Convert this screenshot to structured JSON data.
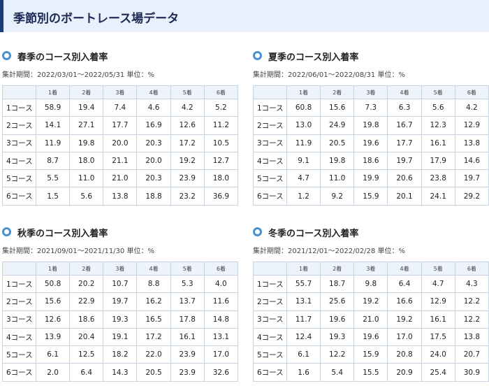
{
  "page": {
    "title": "季節別のボートレース場データ"
  },
  "columns": [
    "1着",
    "2着",
    "3着",
    "4着",
    "5着",
    "6着"
  ],
  "sections": [
    {
      "title": "春季のコース別入着率",
      "period": "集計期間：2022/03/01～2022/05/31",
      "unit": "単位：%",
      "rows": [
        {
          "label": "1コース",
          "values": [
            "58.9",
            "19.4",
            "7.4",
            "4.6",
            "4.2",
            "5.2"
          ]
        },
        {
          "label": "2コース",
          "values": [
            "14.1",
            "27.1",
            "17.7",
            "16.9",
            "12.6",
            "11.2"
          ]
        },
        {
          "label": "3コース",
          "values": [
            "11.9",
            "19.8",
            "20.0",
            "20.3",
            "17.2",
            "10.5"
          ]
        },
        {
          "label": "4コース",
          "values": [
            "8.7",
            "18.0",
            "21.1",
            "20.0",
            "19.2",
            "12.7"
          ]
        },
        {
          "label": "5コース",
          "values": [
            "5.5",
            "11.0",
            "21.0",
            "20.3",
            "23.9",
            "18.0"
          ]
        },
        {
          "label": "6コース",
          "values": [
            "1.5",
            "5.6",
            "13.8",
            "18.8",
            "23.2",
            "36.9"
          ]
        }
      ]
    },
    {
      "title": "夏季のコース別入着率",
      "period": "集計期間：2022/06/01～2022/08/31",
      "unit": "単位：%",
      "rows": [
        {
          "label": "1コース",
          "values": [
            "60.8",
            "15.6",
            "7.3",
            "6.3",
            "5.6",
            "4.2"
          ]
        },
        {
          "label": "2コース",
          "values": [
            "13.0",
            "24.9",
            "19.8",
            "16.7",
            "12.3",
            "12.9"
          ]
        },
        {
          "label": "3コース",
          "values": [
            "11.9",
            "20.5",
            "19.6",
            "17.7",
            "16.1",
            "13.8"
          ]
        },
        {
          "label": "4コース",
          "values": [
            "9.1",
            "19.8",
            "18.6",
            "19.7",
            "17.9",
            "14.6"
          ]
        },
        {
          "label": "5コース",
          "values": [
            "4.7",
            "11.0",
            "19.9",
            "20.6",
            "23.8",
            "19.7"
          ]
        },
        {
          "label": "6コース",
          "values": [
            "1.2",
            "9.2",
            "15.9",
            "20.1",
            "24.1",
            "29.2"
          ]
        }
      ]
    },
    {
      "title": "秋季のコース別入着率",
      "period": "集計期間：2021/09/01～2021/11/30",
      "unit": "単位：%",
      "rows": [
        {
          "label": "1コース",
          "values": [
            "50.8",
            "20.2",
            "10.7",
            "8.8",
            "5.3",
            "4.0"
          ]
        },
        {
          "label": "2コース",
          "values": [
            "15.6",
            "22.9",
            "19.7",
            "16.2",
            "13.7",
            "11.6"
          ]
        },
        {
          "label": "3コース",
          "values": [
            "12.6",
            "18.6",
            "19.3",
            "16.5",
            "17.8",
            "14.8"
          ]
        },
        {
          "label": "4コース",
          "values": [
            "13.9",
            "20.4",
            "19.1",
            "17.2",
            "16.1",
            "13.1"
          ]
        },
        {
          "label": "5コース",
          "values": [
            "6.1",
            "12.5",
            "18.2",
            "22.0",
            "23.9",
            "17.0"
          ]
        },
        {
          "label": "6コース",
          "values": [
            "2.0",
            "6.4",
            "14.3",
            "20.5",
            "23.9",
            "32.6"
          ]
        }
      ]
    },
    {
      "title": "冬季のコース別入着率",
      "period": "集計期間：2021/12/01～2022/02/28",
      "unit": "単位：%",
      "rows": [
        {
          "label": "1コース",
          "values": [
            "55.7",
            "18.7",
            "9.8",
            "6.4",
            "4.7",
            "4.3"
          ]
        },
        {
          "label": "2コース",
          "values": [
            "13.1",
            "25.6",
            "19.2",
            "16.6",
            "12.9",
            "12.2"
          ]
        },
        {
          "label": "3コース",
          "values": [
            "11.7",
            "19.6",
            "21.0",
            "19.2",
            "16.1",
            "12.2"
          ]
        },
        {
          "label": "4コース",
          "values": [
            "12.4",
            "19.3",
            "19.6",
            "17.0",
            "17.5",
            "13.8"
          ]
        },
        {
          "label": "5コース",
          "values": [
            "6.1",
            "12.2",
            "15.9",
            "20.8",
            "24.0",
            "20.7"
          ]
        },
        {
          "label": "6コース",
          "values": [
            "1.6",
            "5.4",
            "15.5",
            "20.9",
            "25.4",
            "30.9"
          ]
        }
      ]
    }
  ]
}
